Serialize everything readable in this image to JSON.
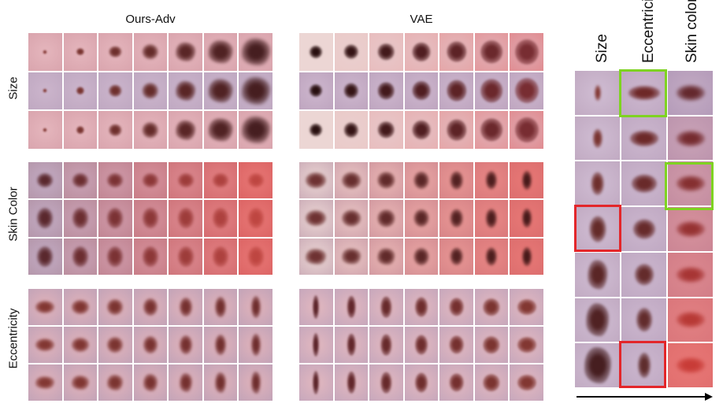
{
  "panels": {
    "left_title": "Ours-Adv",
    "middle_title": "VAE"
  },
  "row_groups": {
    "size": "Size",
    "skin_color": "Skin Color",
    "eccentricity": "Eccentricity"
  },
  "right_panel": {
    "columns": [
      "Size",
      "Eccentricity",
      "Skin color"
    ],
    "highlight_colors": {
      "green": "#7ed321",
      "red": "#e3262a"
    }
  }
}
